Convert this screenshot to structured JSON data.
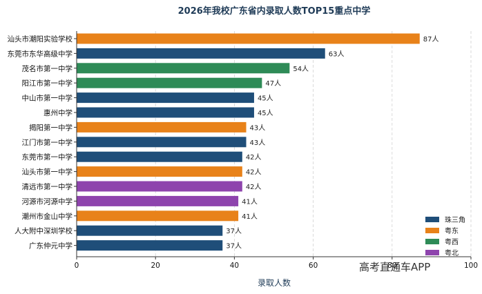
{
  "chart_data": {
    "type": "bar",
    "orientation": "horizontal",
    "title": "2026年我校广东省内录取人数TOP15重点中学",
    "xlabel": "录取人数",
    "ylabel": "",
    "xlim": [
      0,
      100
    ],
    "xticks": [
      0,
      20,
      40,
      60,
      80,
      100
    ],
    "grid": "x-dashed",
    "legend_position": "bottom-right",
    "value_suffix": "人",
    "regions": [
      {
        "name": "珠三角",
        "color": "#1f4e79"
      },
      {
        "name": "粤东",
        "color": "#e8821a"
      },
      {
        "name": "粤西",
        "color": "#2e8b57"
      },
      {
        "name": "粤北",
        "color": "#8e44ad"
      }
    ],
    "bars": [
      {
        "category": "汕头市潮阳实验学校",
        "value": 87,
        "label": "87人",
        "region": "粤东"
      },
      {
        "category": "东莞市东华高级中学",
        "value": 63,
        "label": "63人",
        "region": "珠三角"
      },
      {
        "category": "茂名市第一中学",
        "value": 54,
        "label": "54人",
        "region": "粤西"
      },
      {
        "category": "阳江市第一中学",
        "value": 47,
        "label": "47人",
        "region": "粤西"
      },
      {
        "category": "中山市第一中学",
        "value": 45,
        "label": "45人",
        "region": "珠三角"
      },
      {
        "category": "惠州中学",
        "value": 45,
        "label": "45人",
        "region": "珠三角"
      },
      {
        "category": "揭阳第一中学",
        "value": 43,
        "label": "43人",
        "region": "粤东"
      },
      {
        "category": "江门市第一中学",
        "value": 43,
        "label": "43人",
        "region": "珠三角"
      },
      {
        "category": "东莞市第一中学",
        "value": 42,
        "label": "42人",
        "region": "珠三角"
      },
      {
        "category": "汕头市第一中学",
        "value": 42,
        "label": "42人",
        "region": "粤东"
      },
      {
        "category": "清远市第一中学",
        "value": 42,
        "label": "42人",
        "region": "粤北"
      },
      {
        "category": "河源市河源中学",
        "value": 41,
        "label": "41人",
        "region": "粤北"
      },
      {
        "category": "潮州市金山中学",
        "value": 41,
        "label": "41人",
        "region": "粤东"
      },
      {
        "category": "人大附中深圳学校",
        "value": 37,
        "label": "37人",
        "region": "珠三角"
      },
      {
        "category": "广东仲元中学",
        "value": 37,
        "label": "37人",
        "region": "珠三角"
      }
    ]
  },
  "watermark": "高考直通车APP"
}
